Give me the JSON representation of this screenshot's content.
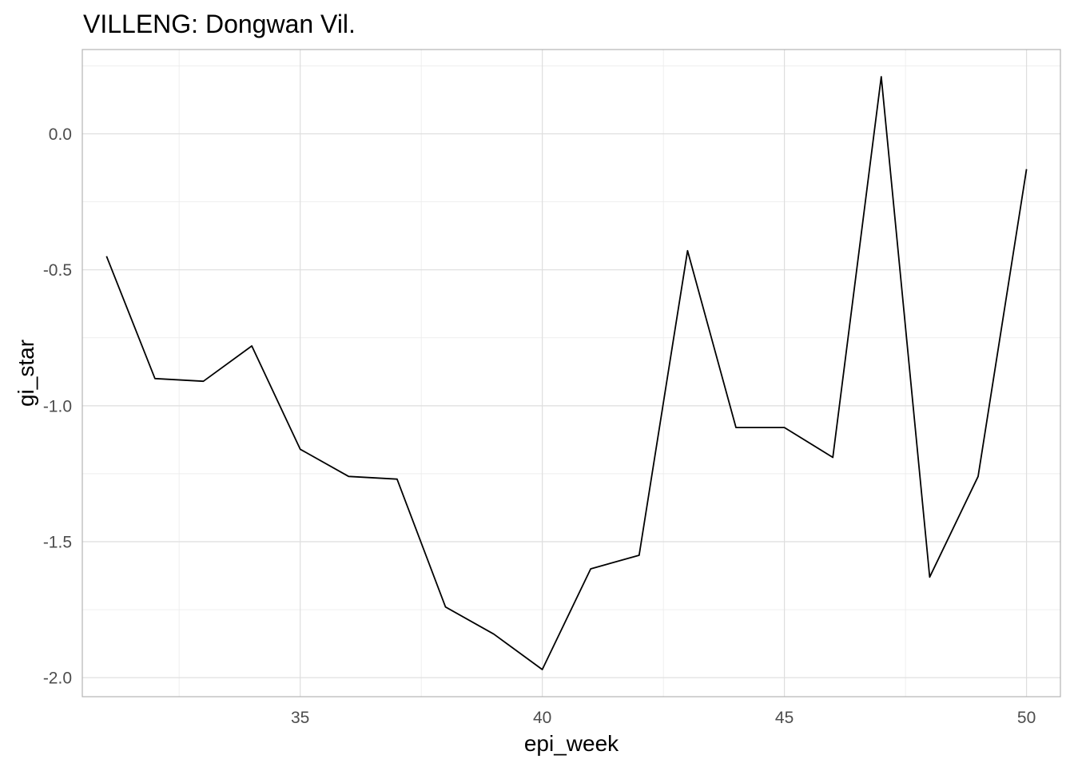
{
  "chart_data": {
    "type": "line",
    "title": "VILLENG: Dongwan Vil.",
    "xlabel": "epi_week",
    "ylabel": "gi_star",
    "xlim": [
      30.5,
      50.7
    ],
    "ylim": [
      -2.07,
      0.31
    ],
    "x_ticks": [
      35,
      40,
      45,
      50
    ],
    "x_tick_labels": [
      "35",
      "40",
      "45",
      "50"
    ],
    "y_ticks": [
      0.0,
      -0.5,
      -1.0,
      -1.5,
      -2.0
    ],
    "y_tick_labels": [
      "0.0",
      "-0.5",
      "-1.0",
      "-1.5",
      "-2.0"
    ],
    "grid": true,
    "series": [
      {
        "color": "#000000",
        "x": [
          31,
          32,
          33,
          34,
          35,
          36,
          37,
          38,
          39,
          40,
          41,
          42,
          43,
          44,
          45,
          46,
          47,
          48,
          49,
          50
        ],
        "y": [
          -0.45,
          -0.9,
          -0.91,
          -0.78,
          -1.16,
          -1.26,
          -1.27,
          -1.74,
          -1.84,
          -1.97,
          -1.6,
          -1.55,
          -0.43,
          -1.08,
          -1.08,
          -1.19,
          0.21,
          -1.63,
          -1.26,
          -0.13
        ]
      }
    ]
  }
}
